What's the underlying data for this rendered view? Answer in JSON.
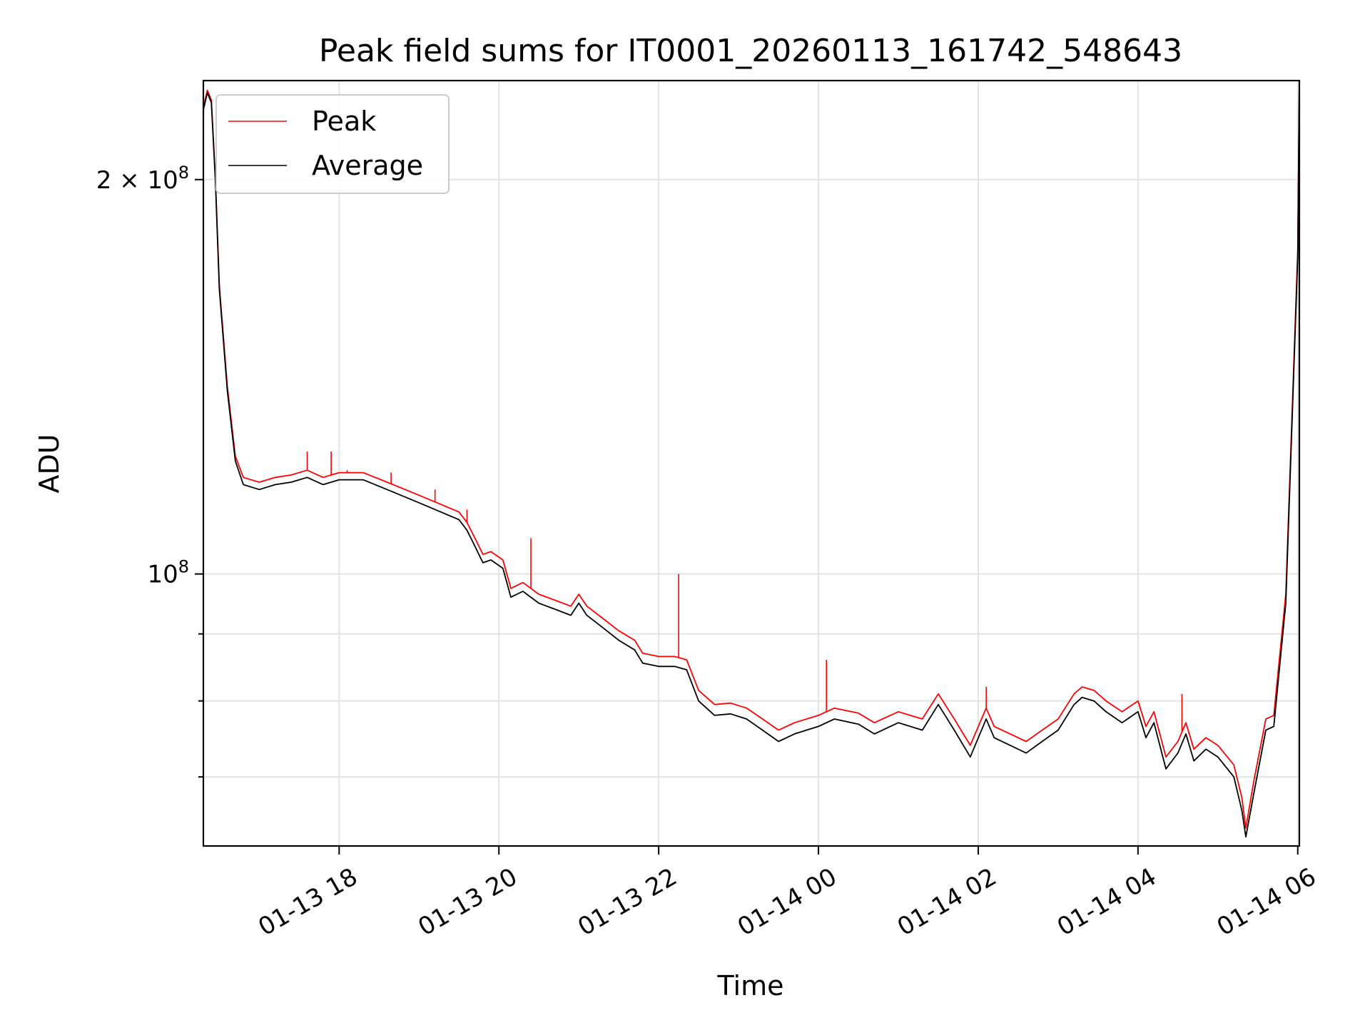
{
  "chart_data": {
    "type": "line",
    "title": "Peak field sums for IT0001_20260113_161742_548643",
    "xlabel": "Time",
    "ylabel": "ADU",
    "x_tick_labels": [
      "01-13 18",
      "01-13 20",
      "01-13 22",
      "01-14 00",
      "01-14 02",
      "01-14 04",
      "01-14 06"
    ],
    "x_ticks_hours": [
      18,
      20,
      22,
      24,
      26,
      28,
      30
    ],
    "y_tick_labels": [
      {
        "value": 100000000,
        "base": "10",
        "exp": "8",
        "prefix": ""
      },
      {
        "value": 200000000,
        "base": "10",
        "exp": "8",
        "prefix": "2 × "
      }
    ],
    "y_minor_ticks": [
      70000000,
      80000000,
      90000000
    ],
    "xlim_hours": [
      16.3,
      30.02
    ],
    "ylim": [
      62000000,
      238000000
    ],
    "yscale": "log",
    "grid": true,
    "legend": {
      "position": "top-left",
      "entries": [
        "Peak",
        "Average"
      ]
    },
    "colors": {
      "Peak": "#ff0000",
      "Average": "#000000"
    },
    "series": [
      {
        "name": "Average",
        "points": [
          [
            16.3,
            226000000
          ],
          [
            16.35,
            233000000
          ],
          [
            16.4,
            229000000
          ],
          [
            16.45,
            200000000
          ],
          [
            16.5,
            165000000
          ],
          [
            16.6,
            138000000
          ],
          [
            16.7,
            122000000
          ],
          [
            16.8,
            117000000
          ],
          [
            17.0,
            116000000
          ],
          [
            17.2,
            117000000
          ],
          [
            17.4,
            117500000
          ],
          [
            17.6,
            118500000
          ],
          [
            17.8,
            117000000
          ],
          [
            18.0,
            118000000
          ],
          [
            18.3,
            118000000
          ],
          [
            18.6,
            116000000
          ],
          [
            18.9,
            114000000
          ],
          [
            19.2,
            112000000
          ],
          [
            19.5,
            110000000
          ],
          [
            19.6,
            108000000
          ],
          [
            19.7,
            105000000
          ],
          [
            19.8,
            102000000
          ],
          [
            19.9,
            102500000
          ],
          [
            20.05,
            101000000
          ],
          [
            20.15,
            96000000
          ],
          [
            20.3,
            97000000
          ],
          [
            20.5,
            95000000
          ],
          [
            20.7,
            94000000
          ],
          [
            20.9,
            93000000
          ],
          [
            21.0,
            95000000
          ],
          [
            21.1,
            93000000
          ],
          [
            21.3,
            91000000
          ],
          [
            21.5,
            89000000
          ],
          [
            21.7,
            87500000
          ],
          [
            21.8,
            85500000
          ],
          [
            22.0,
            85000000
          ],
          [
            22.2,
            85000000
          ],
          [
            22.35,
            84500000
          ],
          [
            22.5,
            80000000
          ],
          [
            22.7,
            78000000
          ],
          [
            22.9,
            78200000
          ],
          [
            23.1,
            77500000
          ],
          [
            23.3,
            76000000
          ],
          [
            23.5,
            74500000
          ],
          [
            23.7,
            75500000
          ],
          [
            24.0,
            76500000
          ],
          [
            24.2,
            77500000
          ],
          [
            24.5,
            76800000
          ],
          [
            24.7,
            75500000
          ],
          [
            25.0,
            77000000
          ],
          [
            25.3,
            76000000
          ],
          [
            25.5,
            79500000
          ],
          [
            25.7,
            76000000
          ],
          [
            25.9,
            72500000
          ],
          [
            26.1,
            77500000
          ],
          [
            26.2,
            75000000
          ],
          [
            26.4,
            74000000
          ],
          [
            26.6,
            73000000
          ],
          [
            26.8,
            74500000
          ],
          [
            27.0,
            76000000
          ],
          [
            27.2,
            79500000
          ],
          [
            27.3,
            80500000
          ],
          [
            27.45,
            80000000
          ],
          [
            27.6,
            78500000
          ],
          [
            27.8,
            77000000
          ],
          [
            28.0,
            78500000
          ],
          [
            28.1,
            75000000
          ],
          [
            28.2,
            77000000
          ],
          [
            28.35,
            71000000
          ],
          [
            28.5,
            73000000
          ],
          [
            28.6,
            75500000
          ],
          [
            28.7,
            72000000
          ],
          [
            28.85,
            73500000
          ],
          [
            29.0,
            72500000
          ],
          [
            29.2,
            70000000
          ],
          [
            29.3,
            66000000
          ],
          [
            29.35,
            63000000
          ],
          [
            29.45,
            68000000
          ],
          [
            29.6,
            76000000
          ],
          [
            29.7,
            76500000
          ],
          [
            29.85,
            95000000
          ],
          [
            30.0,
            175000000
          ],
          [
            30.02,
            238000000
          ]
        ]
      },
      {
        "name": "Peak",
        "points": [
          [
            16.3,
            227000000
          ],
          [
            16.35,
            234000000
          ],
          [
            16.4,
            230000000
          ],
          [
            16.45,
            201000000
          ],
          [
            16.5,
            166000000
          ],
          [
            16.6,
            139000000
          ],
          [
            16.7,
            123000000
          ],
          [
            16.8,
            118500000
          ],
          [
            17.0,
            117500000
          ],
          [
            17.2,
            118500000
          ],
          [
            17.4,
            119000000
          ],
          [
            17.6,
            120000000
          ],
          [
            17.8,
            118500000
          ],
          [
            18.0,
            119500000
          ],
          [
            18.3,
            119500000
          ],
          [
            18.6,
            117500000
          ],
          [
            18.9,
            115500000
          ],
          [
            19.2,
            113500000
          ],
          [
            19.5,
            111500000
          ],
          [
            19.6,
            109500000
          ],
          [
            19.7,
            106500000
          ],
          [
            19.8,
            103500000
          ],
          [
            19.9,
            104000000
          ],
          [
            20.05,
            102500000
          ],
          [
            20.15,
            97500000
          ],
          [
            20.3,
            98500000
          ],
          [
            20.5,
            96500000
          ],
          [
            20.7,
            95500000
          ],
          [
            20.9,
            94500000
          ],
          [
            21.0,
            96500000
          ],
          [
            21.1,
            94500000
          ],
          [
            21.3,
            92500000
          ],
          [
            21.5,
            90500000
          ],
          [
            21.7,
            89000000
          ],
          [
            21.8,
            87000000
          ],
          [
            22.0,
            86500000
          ],
          [
            22.2,
            86500000
          ],
          [
            22.35,
            86000000
          ],
          [
            22.5,
            81500000
          ],
          [
            22.7,
            79500000
          ],
          [
            22.9,
            79700000
          ],
          [
            23.1,
            79000000
          ],
          [
            23.3,
            77500000
          ],
          [
            23.5,
            76000000
          ],
          [
            23.7,
            77000000
          ],
          [
            24.0,
            78000000
          ],
          [
            24.2,
            79000000
          ],
          [
            24.5,
            78300000
          ],
          [
            24.7,
            77000000
          ],
          [
            25.0,
            78500000
          ],
          [
            25.3,
            77500000
          ],
          [
            25.5,
            81000000
          ],
          [
            25.7,
            77500000
          ],
          [
            25.9,
            74000000
          ],
          [
            26.1,
            79000000
          ],
          [
            26.2,
            76500000
          ],
          [
            26.4,
            75500000
          ],
          [
            26.6,
            74500000
          ],
          [
            26.8,
            76000000
          ],
          [
            27.0,
            77500000
          ],
          [
            27.2,
            81000000
          ],
          [
            27.3,
            82000000
          ],
          [
            27.45,
            81500000
          ],
          [
            27.6,
            80000000
          ],
          [
            27.8,
            78500000
          ],
          [
            28.0,
            80000000
          ],
          [
            28.1,
            76500000
          ],
          [
            28.2,
            78500000
          ],
          [
            28.35,
            72500000
          ],
          [
            28.5,
            74500000
          ],
          [
            28.6,
            77000000
          ],
          [
            28.7,
            73500000
          ],
          [
            28.85,
            75000000
          ],
          [
            29.0,
            74000000
          ],
          [
            29.2,
            71500000
          ],
          [
            29.3,
            67500000
          ],
          [
            29.35,
            64000000
          ],
          [
            29.45,
            69500000
          ],
          [
            29.6,
            77500000
          ],
          [
            29.7,
            78000000
          ],
          [
            29.85,
            96500000
          ],
          [
            30.0,
            177000000
          ],
          [
            30.02,
            238000000
          ]
        ],
        "spikes": [
          [
            17.6,
            124000000
          ],
          [
            17.9,
            124000000
          ],
          [
            18.1,
            120000000
          ],
          [
            18.65,
            119500000
          ],
          [
            19.2,
            116000000
          ],
          [
            19.6,
            112000000
          ],
          [
            20.4,
            106500000
          ],
          [
            22.25,
            100000000
          ],
          [
            24.1,
            86000000
          ],
          [
            26.1,
            82000000
          ],
          [
            28.55,
            81000000
          ]
        ]
      }
    ]
  }
}
